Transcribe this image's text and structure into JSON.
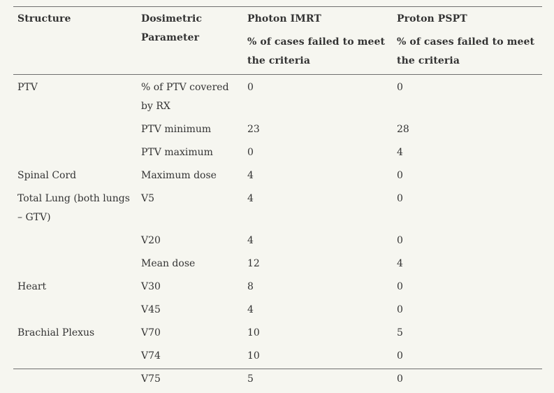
{
  "table": {
    "headers": {
      "structure": "Structure",
      "parameter": "Dosimetric Parameter",
      "imrt_title": "Photon IMRT",
      "imrt_sub": "% of cases failed to meet the criteria",
      "pspt_title": "Proton PSPT",
      "pspt_sub": "% of cases failed to meet the criteria"
    },
    "rows": [
      {
        "structure": "PTV",
        "parameter": "% of PTV covered by RX",
        "imrt": "0",
        "pspt": "0"
      },
      {
        "structure": "",
        "parameter": "PTV minimum",
        "imrt": "23",
        "pspt": "28"
      },
      {
        "structure": "",
        "parameter": "PTV maximum",
        "imrt": "0",
        "pspt": "4"
      },
      {
        "structure": "Spinal Cord",
        "parameter": "Maximum dose",
        "imrt": "4",
        "pspt": "0"
      },
      {
        "structure": "Total Lung (both lungs – GTV)",
        "parameter": "V5",
        "imrt": "4",
        "pspt": "0"
      },
      {
        "structure": "",
        "parameter": "V20",
        "imrt": "4",
        "pspt": "0"
      },
      {
        "structure": "",
        "parameter": "Mean dose",
        "imrt": "12",
        "pspt": "4"
      },
      {
        "structure": "Heart",
        "parameter": "V30",
        "imrt": "8",
        "pspt": "0"
      },
      {
        "structure": "",
        "parameter": "V45",
        "imrt": "4",
        "pspt": "0"
      },
      {
        "structure": "Brachial Plexus",
        "parameter": "V70",
        "imrt": "10",
        "pspt": "5"
      },
      {
        "structure": "",
        "parameter": "V74",
        "imrt": "10",
        "pspt": "0"
      },
      {
        "structure": "",
        "parameter": "V75",
        "imrt": "5",
        "pspt": "0"
      }
    ]
  }
}
